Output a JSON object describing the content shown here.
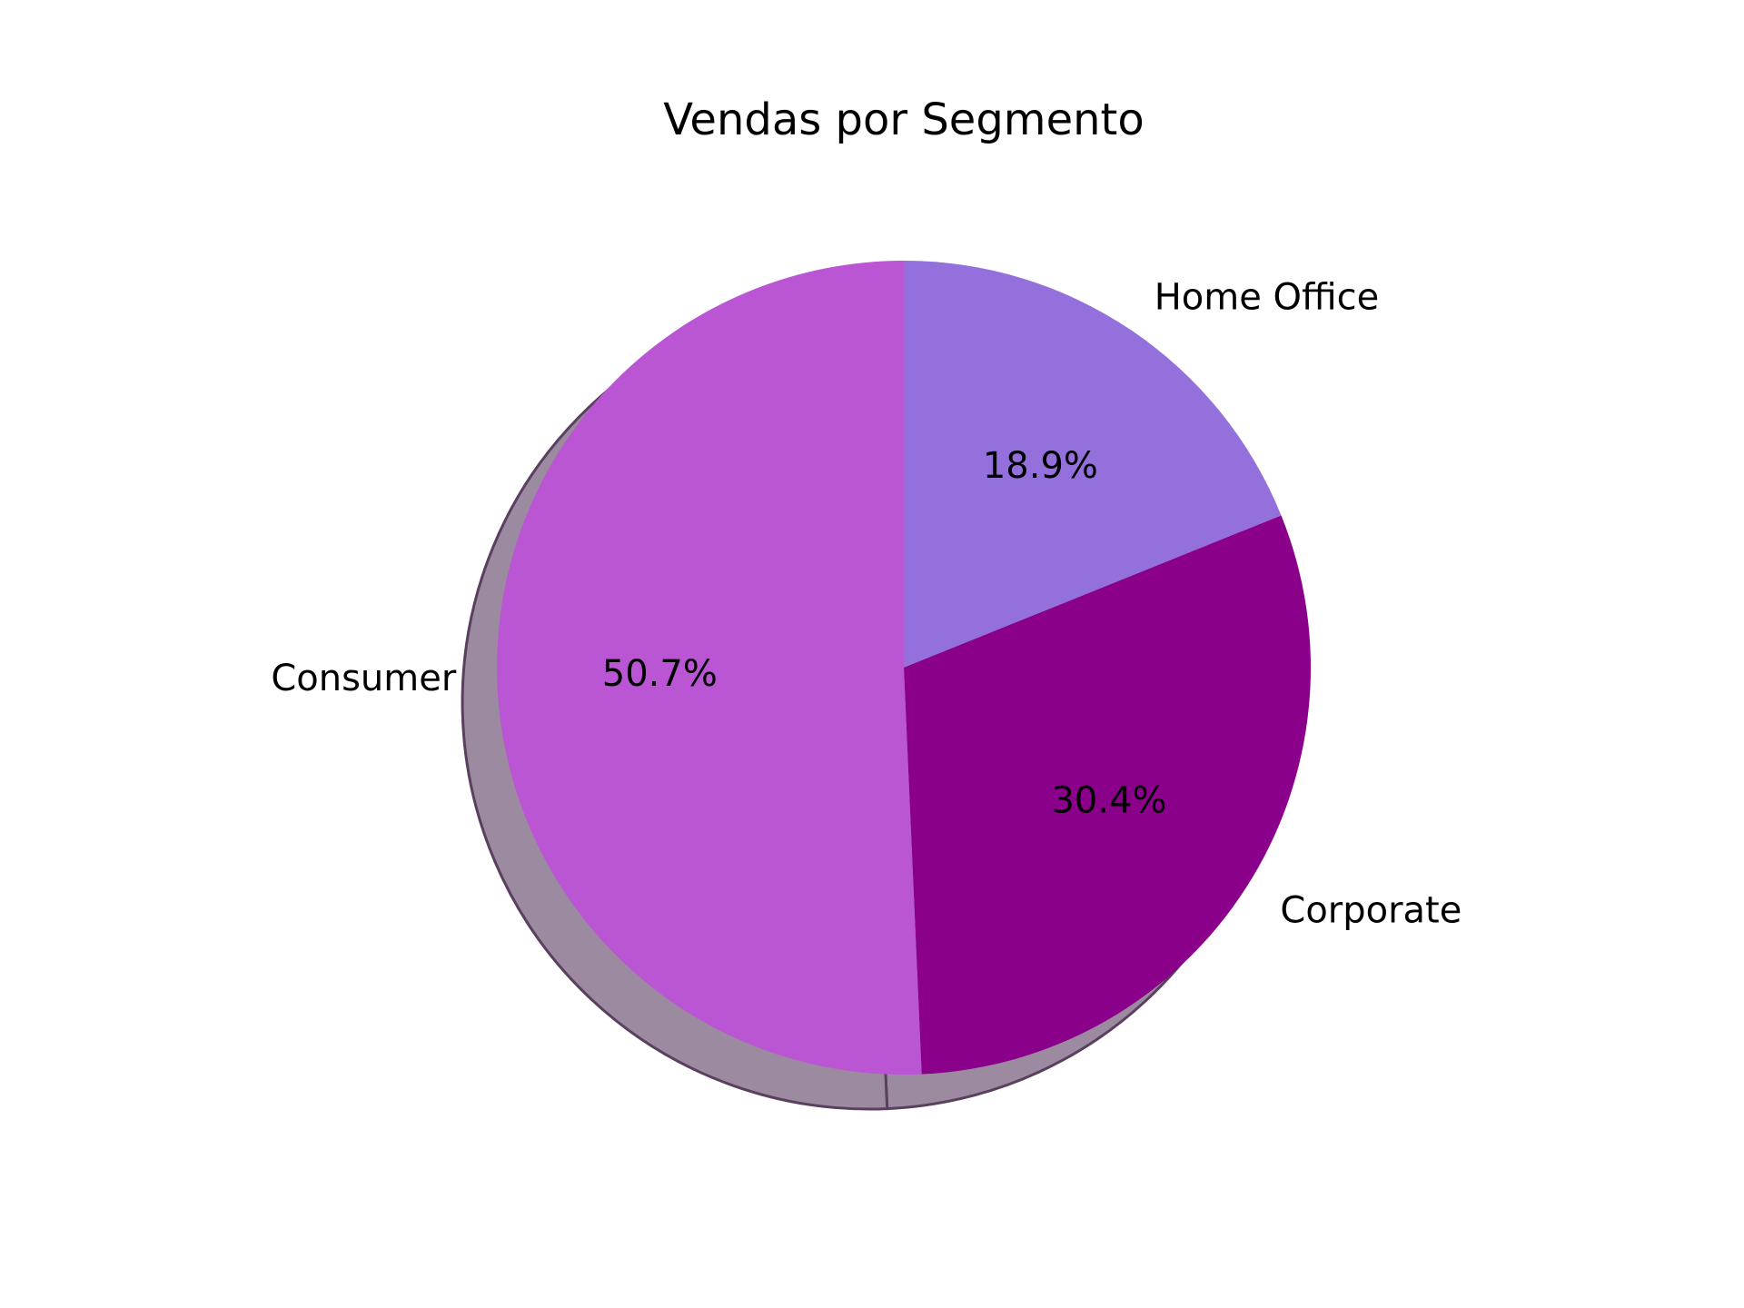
{
  "chart_data": {
    "type": "pie",
    "title": "Vendas por Segmento",
    "labels": [
      "Home Office",
      "Corporate",
      "Consumer"
    ],
    "values": [
      18.9,
      30.4,
      50.7
    ],
    "value_labels": [
      "18.9%",
      "30.4%",
      "50.7%"
    ],
    "colors": [
      "#9370DB",
      "#8B008B",
      "#BA55D3"
    ],
    "start_angle_deg": 90,
    "direction": "clockwise",
    "shadow": true,
    "legend": "none"
  }
}
